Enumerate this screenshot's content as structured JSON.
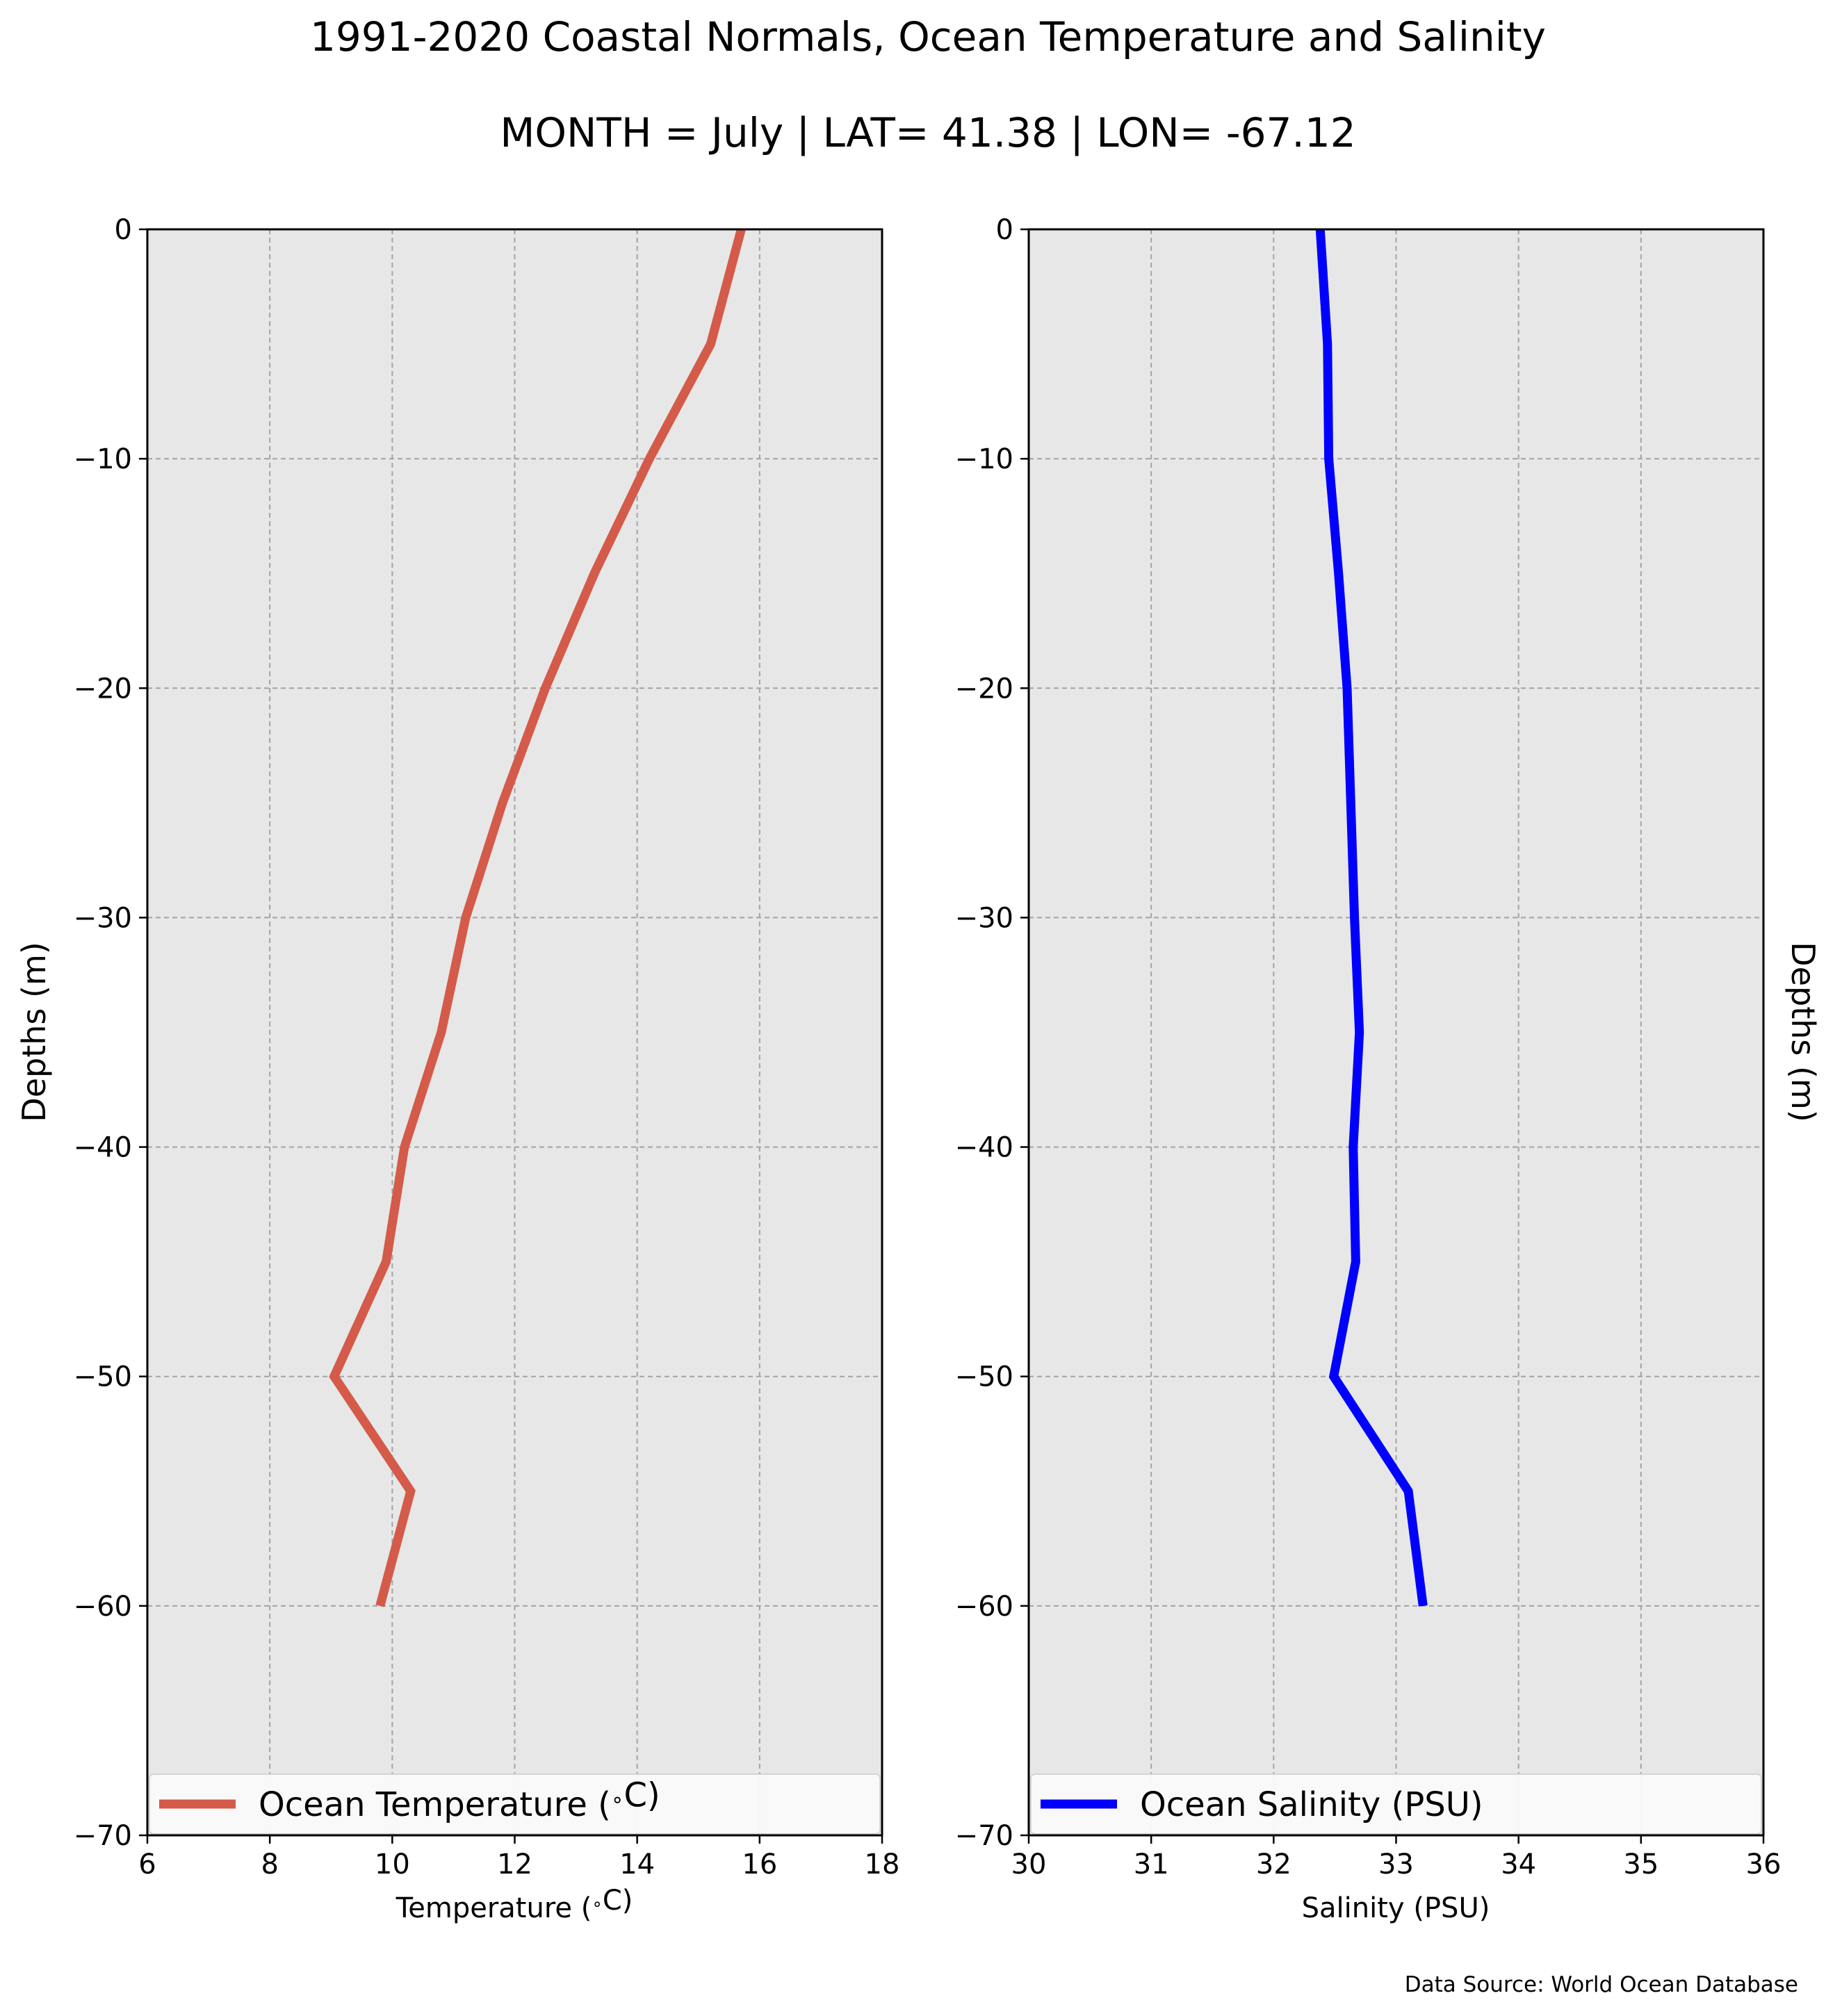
{
  "figure": {
    "title_line1": "1991-2020 Coastal Normals, Ocean Temperature and Salinity",
    "title_line2": "MONTH = July | LAT= 41.38 | LON= -67.12",
    "source": "Data Source: World Ocean Database"
  },
  "chart_data": [
    {
      "type": "line",
      "title": "",
      "xlabel": "Temperature ($^\\circ$C)",
      "ylabel": "Depths (m)",
      "xlim": [
        6,
        18
      ],
      "ylim": [
        -70,
        0
      ],
      "xticks": [
        6,
        8,
        10,
        12,
        14,
        16,
        18
      ],
      "yticks": [
        0,
        -10,
        -20,
        -30,
        -40,
        -50,
        -60,
        -70
      ],
      "grid": true,
      "legend_position": "bottom",
      "series": [
        {
          "name": "Ocean Temperature ($^\\circ$C)",
          "color": "#d45a4a",
          "x": [
            15.7,
            15.2,
            14.2,
            13.3,
            12.5,
            11.8,
            11.2,
            10.8,
            10.2,
            9.9,
            9.05,
            10.3,
            9.8
          ],
          "y": [
            0,
            -5,
            -10,
            -15,
            -20,
            -25,
            -30,
            -35,
            -40,
            -45,
            -50,
            -55,
            -60
          ]
        }
      ]
    },
    {
      "type": "line",
      "title": "",
      "xlabel": "Salinity (PSU)",
      "ylabel": "Depths (m)",
      "xlim": [
        30,
        36
      ],
      "ylim": [
        -70,
        0
      ],
      "xticks": [
        30,
        31,
        32,
        33,
        34,
        35,
        36
      ],
      "yticks": [
        0,
        -10,
        -20,
        -30,
        -40,
        -50,
        -60,
        -70
      ],
      "grid": true,
      "legend_position": "bottom",
      "series": [
        {
          "name": "Ocean Salinity (PSU)",
          "color": "#0000ff",
          "x": [
            32.38,
            32.44,
            32.45,
            32.53,
            32.6,
            32.63,
            32.66,
            32.7,
            32.65,
            32.67,
            32.49,
            33.1,
            33.22
          ],
          "y": [
            0,
            -5,
            -10,
            -15,
            -20,
            -25,
            -30,
            -35,
            -40,
            -45,
            -50,
            -55,
            -60
          ]
        }
      ]
    }
  ]
}
